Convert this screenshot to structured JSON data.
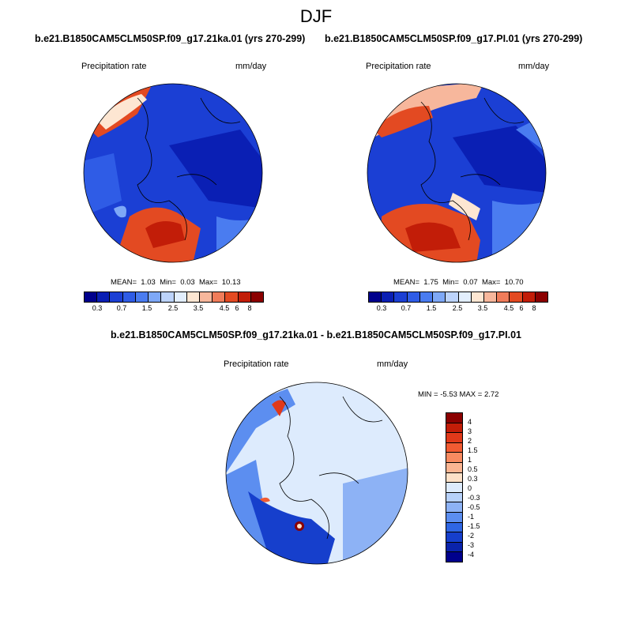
{
  "figure": {
    "title": "DJF",
    "colors": {
      "precip_scale": [
        "#00008c",
        "#0a1fb4",
        "#1b3fd4",
        "#2f5ce6",
        "#4a7cf0",
        "#7ea8f7",
        "#bcd3fb",
        "#e2eefd",
        "#fde6d2",
        "#f7b79c",
        "#f07c5a",
        "#e34a22",
        "#c21d08",
        "#8b0000"
      ],
      "diff_scale": [
        "#8b0000",
        "#c21d08",
        "#e0391a",
        "#f25b32",
        "#f88a60",
        "#fbb592",
        "#fde1c8",
        "#ddebfd",
        "#b7d1fa",
        "#8db2f5",
        "#5c8ef0",
        "#2f66e3",
        "#163fcc",
        "#0a23ab",
        "#00008c"
      ],
      "coastline": "#000000"
    }
  },
  "panels": {
    "left": {
      "case_title": "b.e21.B1850CAM5CLM50SP.f09_g17.21ka.01 (yrs 270-299)",
      "field_label": "Precipitation rate",
      "units": "mm/day",
      "stats": {
        "mean_label": "MEAN=",
        "mean": "1.03",
        "min_label": "Min=",
        "min": "0.03",
        "max_label": "Max=",
        "max": "10.13"
      },
      "colorbar_labels": [
        "0.3",
        "0.7",
        "1.5",
        "2.5",
        "3.5",
        "4.5",
        "6",
        "8"
      ]
    },
    "right": {
      "case_title": "b.e21.B1850CAM5CLM50SP.f09_g17.PI.01 (yrs 270-299)",
      "field_label": "Precipitation rate",
      "units": "mm/day",
      "stats": {
        "mean_label": "MEAN=",
        "mean": "1.75",
        "min_label": "Min=",
        "min": "0.07",
        "max_label": "Max=",
        "max": "10.70"
      },
      "colorbar_labels": [
        "0.3",
        "0.7",
        "1.5",
        "2.5",
        "3.5",
        "4.5",
        "6",
        "8"
      ]
    },
    "diff": {
      "case_title": "b.e21.B1850CAM5CLM50SP.f09_g17.21ka.01 - b.e21.B1850CAM5CLM50SP.f09_g17.PI.01",
      "field_label": "Precipitation rate",
      "units": "mm/day",
      "stats_text": "MIN =  -5.53 MAX =   2.72",
      "colorbar_labels": [
        "4",
        "3",
        "2",
        "1.5",
        "1",
        "0.5",
        "0.3",
        "0",
        "-0.3",
        "-0.5",
        "-1",
        "-1.5",
        "-2",
        "-3",
        "-4"
      ]
    }
  }
}
